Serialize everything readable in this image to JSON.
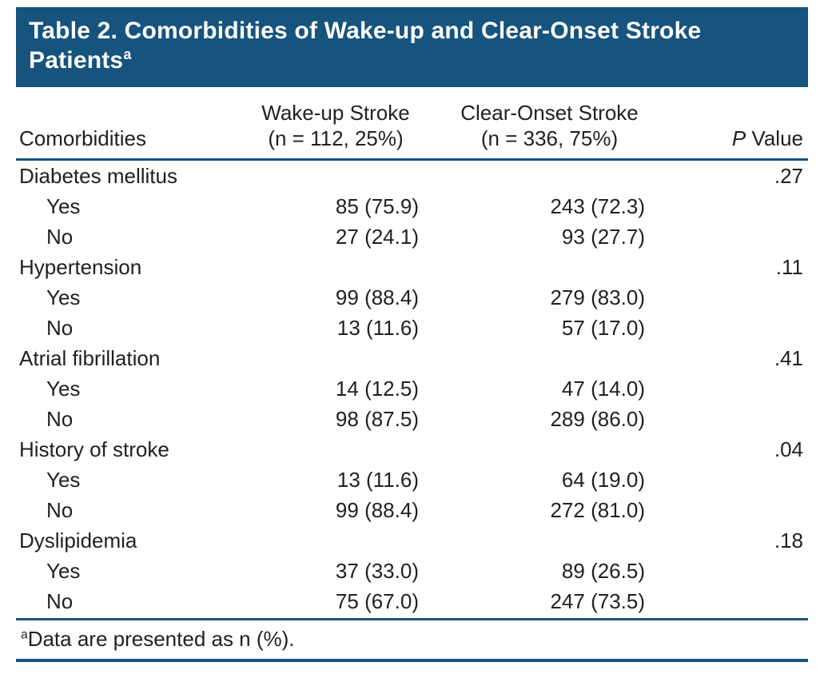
{
  "colors": {
    "header_bg": "#16537d",
    "rule": "#16537d",
    "text": "#1f2023",
    "title_text": "#ffffff"
  },
  "table": {
    "title_line1": "Table 2. Comorbidities of Wake-up and Clear-Onset Stroke",
    "title_line2": "Patients",
    "title_marker": "a",
    "headers": {
      "comorbidities": "Comorbidities",
      "wakeup_line1": "Wake-up Stroke",
      "wakeup_line2": "(n = 112, 25%)",
      "clear_line1": "Clear-Onset Stroke",
      "clear_line2": "(n = 336, 75%)",
      "p_italic": "P",
      "p_rest": " Value"
    },
    "groups": [
      {
        "label": "Diabetes mellitus",
        "p": ".27",
        "items": [
          {
            "label": "Yes",
            "wakeup": "85 (75.9)",
            "clear": "243 (72.3)"
          },
          {
            "label": "No",
            "wakeup": "27 (24.1)",
            "clear": "93 (27.7)"
          }
        ]
      },
      {
        "label": "Hypertension",
        "p": ".11",
        "items": [
          {
            "label": "Yes",
            "wakeup": "99 (88.4)",
            "clear": "279 (83.0)"
          },
          {
            "label": "No",
            "wakeup": "13 (11.6)",
            "clear": "57 (17.0)"
          }
        ]
      },
      {
        "label": "Atrial fibrillation",
        "p": ".41",
        "items": [
          {
            "label": "Yes",
            "wakeup": "14 (12.5)",
            "clear": "47 (14.0)"
          },
          {
            "label": "No",
            "wakeup": "98 (87.5)",
            "clear": "289 (86.0)"
          }
        ]
      },
      {
        "label": "History of stroke",
        "p": ".04",
        "items": [
          {
            "label": "Yes",
            "wakeup": "13 (11.6)",
            "clear": "64 (19.0)"
          },
          {
            "label": "No",
            "wakeup": "99 (88.4)",
            "clear": "272 (81.0)"
          }
        ]
      },
      {
        "label": "Dyslipidemia",
        "p": ".18",
        "items": [
          {
            "label": "Yes",
            "wakeup": "37 (33.0)",
            "clear": "89 (26.5)"
          },
          {
            "label": "No",
            "wakeup": "75 (67.0)",
            "clear": "247 (73.5)"
          }
        ]
      }
    ],
    "footnote_marker": "a",
    "footnote_text": "Data are presented as n (%)."
  }
}
